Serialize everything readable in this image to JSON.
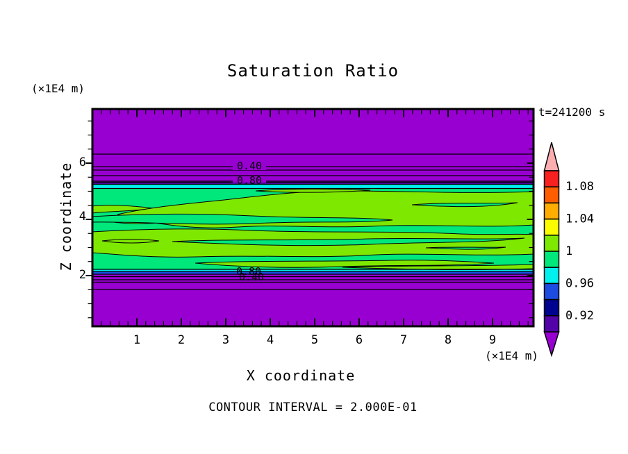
{
  "title": "Saturation Ratio",
  "time_label": "t=241200 s",
  "footer": "CONTOUR INTERVAL = 2.000E-01",
  "axes": {
    "x_label": "X coordinate",
    "x_unit": "(×1E4 m)",
    "y_label": "Z coordinate",
    "y_unit": "(×1E4 m)",
    "x_ticks": [
      "1",
      "2",
      "3",
      "4",
      "5",
      "6",
      "7",
      "8",
      "9"
    ],
    "y_ticks": [
      "2",
      "4",
      "6"
    ]
  },
  "contour_labels": {
    "top_040": "0.40",
    "top_080": "0.80",
    "bottom_080": "0.80",
    "bottom_040": "0.40"
  },
  "colorbar": {
    "labels": [
      "1.08",
      "1.04",
      "1",
      "0.96",
      "0.92"
    ],
    "band_colors_top_to_bottom": [
      "#F92020",
      "#FF5E00",
      "#FFAD00",
      "#FCFC00",
      "#7FE800",
      "#00E87C",
      "#00EFEF",
      "#1D4CE0",
      "#00038F",
      "#5204A8"
    ],
    "over_color": "#FBAEB0",
    "under_color": "#9800D1"
  },
  "palette": {
    "purple_background": "#9800D1",
    "violet_strip": "#5204A8",
    "blue_strip": "#1D4CE0",
    "cyan_strip": "#00EFEF",
    "spring_green": "#00E87C",
    "chartreuse": "#7FE800",
    "contour_line": "#000000"
  },
  "chart_data": {
    "type": "heatmap",
    "title": "Saturation Ratio",
    "xlabel": "X coordinate (×1E4 m)",
    "ylabel": "Z coordinate (×1E4 m)",
    "time_annotation": "t=241200 s",
    "x_range": [
      0,
      9.9
    ],
    "z_range": [
      0.15,
      7.9
    ],
    "x_major_ticks": [
      1,
      2,
      3,
      4,
      5,
      6,
      7,
      8,
      9
    ],
    "z_major_ticks": [
      2,
      4,
      6
    ],
    "contour_interval": 0.2,
    "colorbar_levels": [
      0.9,
      0.92,
      0.94,
      0.96,
      0.98,
      1.0,
      1.02,
      1.04,
      1.06,
      1.08,
      1.1
    ],
    "colorbar_labeled_levels": [
      1.08,
      1.04,
      1.0,
      0.96,
      0.92
    ],
    "field_structure": [
      {
        "zone": "upper",
        "z_extent": [
          5.35,
          7.9
        ],
        "value": "< 0.2 to 0.9 (purple), line contours 0.20 at z≈6.3, 0.40 at z≈5.9 (labeled), 0.60 at z≈5.6, 0.80 at z≈5.35"
      },
      {
        "zone": "upper-transition",
        "z_extent": [
          5.05,
          5.35
        ],
        "value": "0.90–0.98 thin violet and cyan strips"
      },
      {
        "zone": "core",
        "z_extent": [
          2.25,
          5.05
        ],
        "value": "≈0.98–1.02; spring-green (0.98–1.00) with wavy chartreuse streaks (1.00–1.02)"
      },
      {
        "zone": "lower-transition",
        "z_extent": [
          2.0,
          2.25
        ],
        "value": "0.90–0.98 thin cyan and blue strips"
      },
      {
        "zone": "lower",
        "z_extent": [
          0.15,
          2.0
        ],
        "value": "0.9 down to <0.2 (purple), line contours 0.80 (labeled) at z≈1.95, 0.60, 0.40 (labeled) at z≈1.75, 0.20 at z≈1.5"
      }
    ],
    "legend_position": "right vertical colorbar with over/under arrows"
  }
}
